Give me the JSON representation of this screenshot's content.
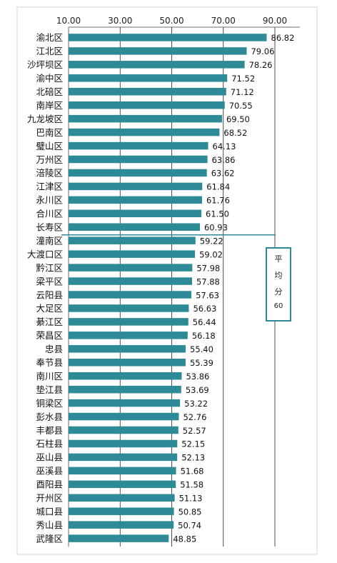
{
  "chart_data": {
    "type": "bar",
    "orientation": "horizontal",
    "categories": [
      "渝北区",
      "江北区",
      "沙坪坝区",
      "渝中区",
      "北碚区",
      "南岸区",
      "九龙坡区",
      "巴南区",
      "璧山区",
      "万州区",
      "涪陵区",
      "江津区",
      "永川区",
      "合川区",
      "长寿区",
      "潼南区",
      "大渡口区",
      "黔江区",
      "梁平区",
      "云阳县",
      "大足区",
      "綦江区",
      "荣昌区",
      "忠县",
      "奉节县",
      "南川区",
      "垫江县",
      "铜梁区",
      "彭水县",
      "丰都县",
      "石柱县",
      "巫山县",
      "巫溪县",
      "酉阳县",
      "开州区",
      "城口县",
      "秀山县",
      "武隆区"
    ],
    "values": [
      86.82,
      79.06,
      78.26,
      71.52,
      71.12,
      70.55,
      69.5,
      68.52,
      64.13,
      63.86,
      63.62,
      61.84,
      61.76,
      61.5,
      60.93,
      59.22,
      59.02,
      57.98,
      57.88,
      57.63,
      56.63,
      56.44,
      56.18,
      55.4,
      55.39,
      53.86,
      53.69,
      53.22,
      52.76,
      52.57,
      52.15,
      52.13,
      51.68,
      51.58,
      51.13,
      50.85,
      50.74,
      48.85
    ],
    "value_labels": [
      "86.82",
      "79.06",
      "78.26",
      "71.52",
      "71.12",
      "70.55",
      "69.50",
      "68.52",
      "64.13",
      "63.86",
      "63.62",
      "61.84",
      "61.76",
      "61.50",
      "60.93",
      "59.22",
      "59.02",
      "57.98",
      "57.88",
      "57.63",
      "56.63",
      "56.44",
      "56.18",
      "55.40",
      "55.39",
      "53.86",
      "53.69",
      "53.22",
      "52.76",
      "52.57",
      "52.15",
      "52.13",
      "51.68",
      "51.58",
      "51.13",
      "50.85",
      "50.74",
      "48.85"
    ],
    "x_ticks": [
      10,
      30,
      50,
      70,
      90
    ],
    "x_tick_labels": [
      "10.00",
      "30.00",
      "50.00",
      "70.00",
      "90.00"
    ],
    "xlim": [
      10,
      90
    ],
    "x_axis_position": "top",
    "grid": true,
    "bar_color": "#2e8a96",
    "average_line_after_index": 14,
    "annotation": {
      "lines": [
        "平",
        "均",
        "分",
        "60"
      ],
      "color": "#2e8a96"
    }
  }
}
